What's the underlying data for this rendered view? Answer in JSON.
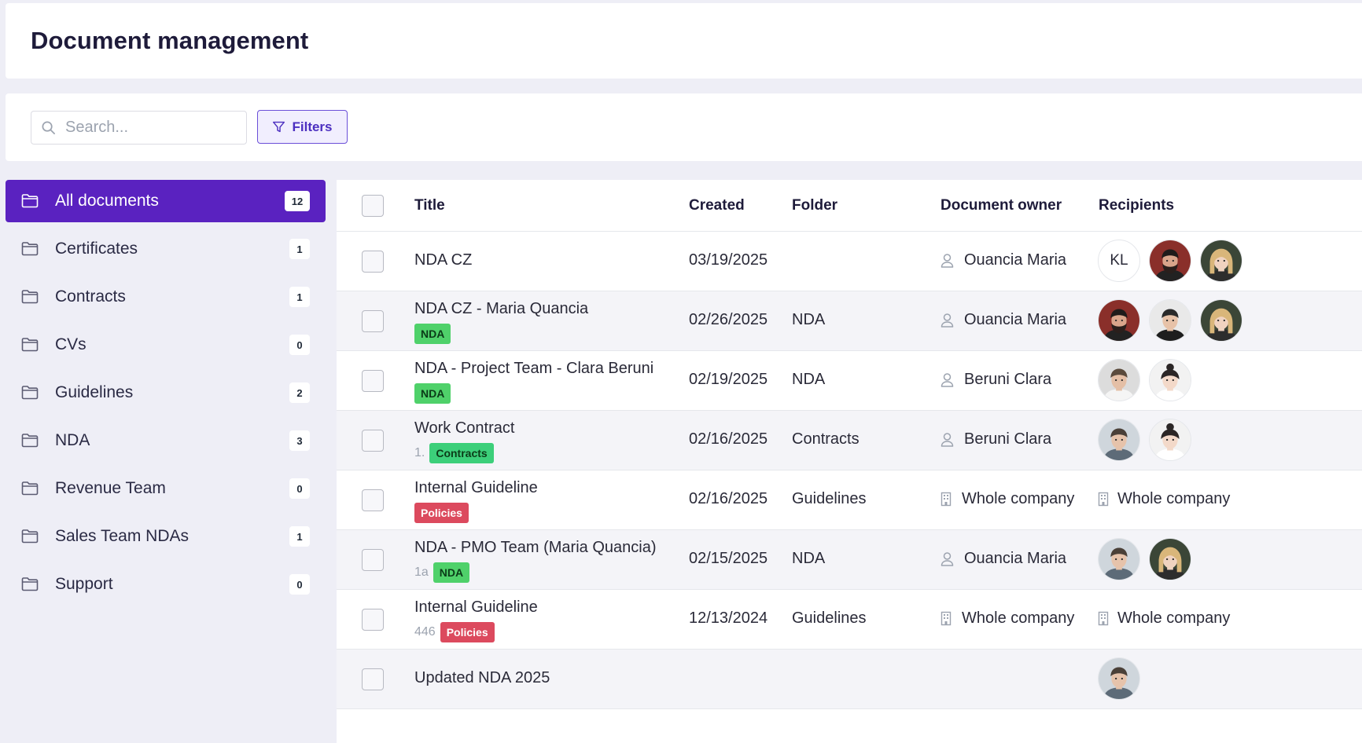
{
  "header": {
    "title": "Document management"
  },
  "toolbar": {
    "search_placeholder": "Search...",
    "filters_label": "Filters"
  },
  "sidebar": {
    "items": [
      {
        "label": "All documents",
        "count": "12",
        "active": true
      },
      {
        "label": "Certificates",
        "count": "1"
      },
      {
        "label": "Contracts",
        "count": "1"
      },
      {
        "label": "CVs",
        "count": "0"
      },
      {
        "label": "Guidelines",
        "count": "2"
      },
      {
        "label": "NDA",
        "count": "3"
      },
      {
        "label": "Revenue Team",
        "count": "0"
      },
      {
        "label": "Sales Team NDAs",
        "count": "1"
      },
      {
        "label": "Support",
        "count": "0"
      }
    ]
  },
  "table": {
    "columns": {
      "title": "Title",
      "created": "Created",
      "folder": "Folder",
      "owner": "Document owner",
      "recipients": "Recipients"
    },
    "rows": [
      {
        "title": "NDA CZ",
        "subnum": "",
        "tag": "",
        "created": "03/19/2025",
        "folder": "",
        "owner": "Ouancia Maria",
        "owner_icon": "user-icon",
        "recipients_text": ""
      },
      {
        "title": "NDA CZ - Maria Quancia",
        "subnum": "",
        "tag": "NDA",
        "created": "02/26/2025",
        "folder": "NDA",
        "owner": "Ouancia Maria",
        "owner_icon": "user-icon",
        "recipients_text": ""
      },
      {
        "title": "NDA - Project Team - Clara Beruni",
        "subnum": "",
        "tag": "NDA",
        "created": "02/19/2025",
        "folder": "NDA",
        "owner": "Beruni Clara",
        "owner_icon": "user-icon",
        "recipients_text": ""
      },
      {
        "title": "Work Contract",
        "subnum": "1.",
        "tag": "Contracts",
        "created": "02/16/2025",
        "folder": "Contracts",
        "owner": "Beruni Clara",
        "owner_icon": "user-icon",
        "recipients_text": ""
      },
      {
        "title": "Internal Guideline",
        "subnum": "",
        "tag": "Policies",
        "created": "02/16/2025",
        "folder": "Guidelines",
        "owner": "Whole company",
        "owner_icon": "building-icon",
        "recipients_text": "Whole company"
      },
      {
        "title": "NDA - PMO Team (Maria Quancia)",
        "subnum": "1a",
        "tag": "NDA",
        "created": "02/15/2025",
        "folder": "NDA",
        "owner": "Ouancia Maria",
        "owner_icon": "user-icon",
        "recipients_text": ""
      },
      {
        "title": "Internal Guideline",
        "subnum": "446",
        "tag": "Policies",
        "created": "12/13/2024",
        "folder": "Guidelines",
        "owner": "Whole company",
        "owner_icon": "building-icon",
        "recipients_text": "Whole company"
      },
      {
        "title": "Updated NDA 2025",
        "subnum": "",
        "tag": "",
        "created": "",
        "folder": "",
        "owner": "",
        "owner_icon": "",
        "recipients_text": ""
      }
    ],
    "recipient_initials": "KL"
  },
  "colors": {
    "accent": "#5a22c0",
    "nda_tag": "#4fd16a",
    "policies_tag": "#dc4a5e"
  }
}
